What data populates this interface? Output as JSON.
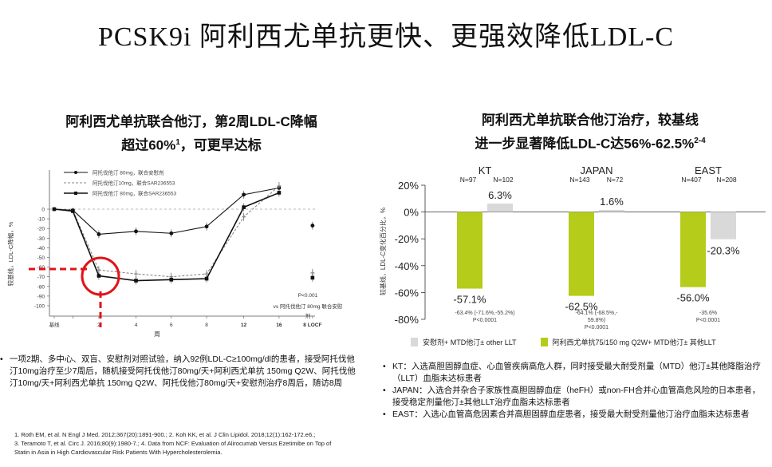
{
  "title": "PCSK9i 阿利西尤单抗更快、更强效降低LDL-C",
  "left_panel": {
    "title_line1": "阿利西尤单抗联合他汀，第2周LDL-C降幅",
    "title_line2": "超过60%",
    "title_sup": "1",
    "title_line2_tail": "，可更早达标",
    "bullet": "一项2期、多中心、双盲、安慰剂对照试验，纳入92例LDL-C≥100mg/dl的患者，接受阿托伐他汀10mg治疗至少7周后，随机接受阿托伐他汀80mg/天+阿利西尤单抗 150mg Q2W、阿托伐他汀10mg/天+阿利西尤单抗 150mg Q2W、阿托伐他汀80mg/天+安慰剂治疗8周后，随访8周"
  },
  "right_panel": {
    "title_line1": "阿利西尤单抗联合他汀治疗，较基线",
    "title_line2": "进一步显著降低LDL-C达56%-62.5%",
    "title_sup": "2-4",
    "bullets": [
      "KT：入选高胆固醇血症、心血管疾病高危人群，同时接受最大耐受剂量（MTD）他汀±其他降脂治疗（LLT）血脂未达标患者",
      "JAPAN：入选合并杂合子家族性高胆固醇血症（heFH）或non-FH合并心血管高危风险的日本患者，接受稳定剂量他汀±其他LLT治疗血脂未达标患者",
      "EAST：入选心血管高危因素合并高胆固醇血症患者，接受最大耐受剂量他汀治疗血脂未达标患者"
    ]
  },
  "references": [
    "1. Roth EM, et al. N Engl J Med. 2012;367(20):1891-900.; 2. Koh KK, et al. J Clin Lipidol. 2018;12(1):162-172.e6.;",
    "3. Teramoto T, et al. Circ J. 2016;80(9):1980-7.; 4. Data from NCF: Evaluation of Alirocumab Versus Ezetimibe on Top of",
    "Statin in Asia in High Cardiovascular Risk Patients With Hypercholesterolemia."
  ],
  "colors": {
    "green": "#b5cc1a",
    "gray": "#d9d9d9",
    "dashed_red": "#e0131a"
  },
  "chart_data": [
    {
      "type": "line",
      "ylabel": "较基线，LDL-C降幅，%",
      "xlabel": "周",
      "x_categories": [
        "基线",
        "",
        "2",
        "4",
        "6",
        "8",
        "12",
        "16",
        "8 LOCF"
      ],
      "yticks": [
        "0",
        "-10",
        "-20",
        "-30",
        "-40",
        "-50",
        "-60",
        "-70",
        "-80",
        "-90",
        "-100"
      ],
      "ylim": [
        -100,
        0
      ],
      "legend": [
        "阿托伐他汀 80mg，联合安慰剂",
        "阿托伐他汀10mg，联合SAR236553",
        "阿托伐他汀 80mg，联合SAR236553"
      ],
      "series": [
        {
          "name": "阿托伐他汀 80mg，联合安慰剂",
          "x": [
            0,
            1,
            2,
            3,
            4,
            5,
            6,
            7,
            8
          ],
          "y": [
            0,
            -1,
            -26,
            -23,
            -25,
            -18,
            15,
            22,
            -17
          ]
        },
        {
          "name": "阿托伐他汀10mg，联合SAR236553",
          "x": [
            0,
            1,
            2,
            3,
            4,
            5,
            6,
            7,
            8
          ],
          "y": [
            0,
            -1,
            -63,
            -67,
            -70,
            -67,
            -8,
            24,
            -66
          ]
        },
        {
          "name": "阿托伐他汀 80mg，联合SAR236553",
          "x": [
            0,
            1,
            2,
            3,
            4,
            5,
            6,
            7,
            8
          ],
          "y": [
            0,
            -2,
            -69,
            -74,
            -73,
            -72,
            2,
            17,
            -71
          ]
        }
      ],
      "annotations": {
        "p_value": "P<0.001",
        "note_line1": "vs 阿托伐他汀 80mg 联合安慰",
        "note_line2": "剂"
      }
    },
    {
      "type": "bar",
      "ylabel": "较基线，LDL-C变化百分比，%",
      "yticks": [
        "20%",
        "0%",
        "-20%",
        "-40%",
        "-60%",
        "-80%"
      ],
      "ylim": [
        -80,
        20
      ],
      "categories": [
        "KT",
        "JAPAN",
        "EAST"
      ],
      "series": [
        {
          "name": "阿利西尤单抗75/150 mg Q2W+ MTD他汀± 其他LLT",
          "values": [
            -57.1,
            -62.5,
            -56.0
          ],
          "labels": [
            "-57.1%",
            "-62.5%",
            "-56.0%"
          ],
          "n": [
            "N=97",
            "N=143",
            "N=407"
          ]
        },
        {
          "name": "安慰剂+ MTD他汀± other LLT",
          "values": [
            6.3,
            1.6,
            -20.3
          ],
          "labels": [
            "6.3%",
            "1.6%",
            "-20.3%"
          ],
          "n": [
            "N=102",
            "N=72",
            "N=208"
          ]
        }
      ],
      "diff_labels": [
        [
          "-63.4% (-71.6%,-55.2%)",
          "P<0.0001"
        ],
        [
          "-64.1% (-68.5%,-",
          "59.8%)",
          "P<0.0001"
        ],
        [
          "-35.6%",
          "P<0.0001"
        ]
      ],
      "legend": [
        "安慰剂+ MTD他汀± other LLT",
        "阿利西尤单抗75/150 mg Q2W+ MTD他汀± 其他LLT"
      ]
    }
  ]
}
